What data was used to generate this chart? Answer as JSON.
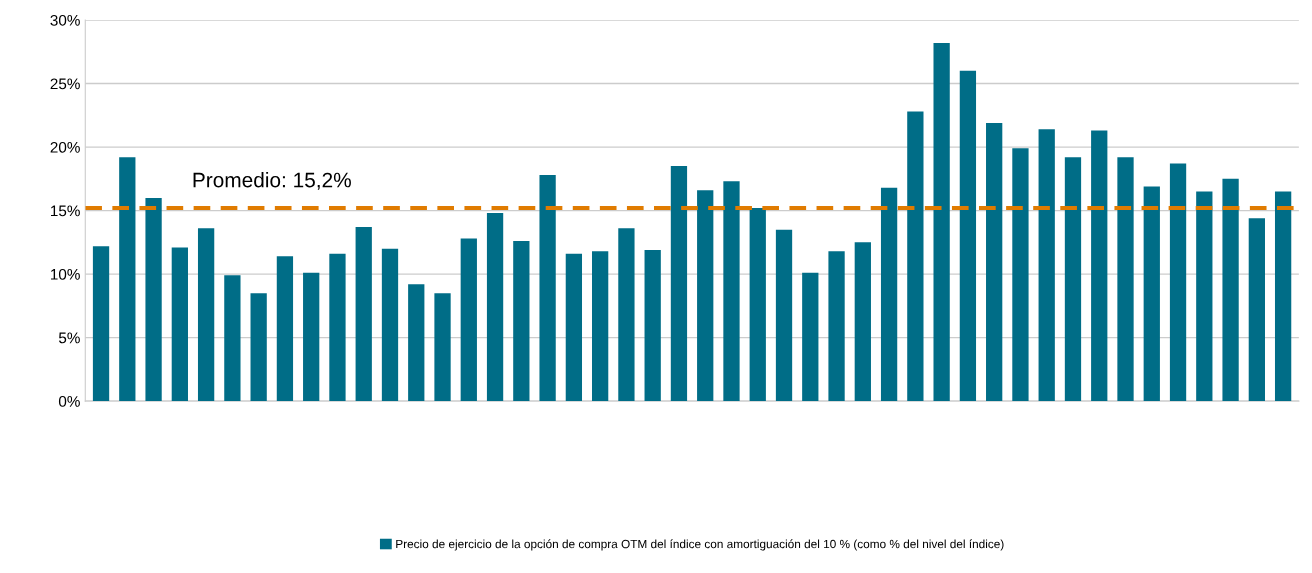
{
  "chart_data": {
    "type": "bar",
    "categories": [
      null,
      null,
      null,
      null,
      null,
      null,
      null,
      null,
      null,
      null,
      null,
      null,
      null,
      null,
      null,
      null,
      null,
      null,
      null,
      null,
      null,
      null,
      null,
      null,
      null,
      null,
      null,
      null,
      null,
      null,
      null,
      null,
      null,
      null,
      null,
      null,
      null,
      null,
      null,
      null,
      null,
      null,
      null,
      null,
      null,
      null
    ],
    "series": [
      {
        "name": "Precio de ejercicio de la opción de compra OTM del índice con amortiguación del 10 % (como % del nivel del índice)",
        "color": "#006d87",
        "values": [
          12.2,
          19.2,
          16.0,
          12.1,
          13.6,
          9.9,
          8.5,
          11.4,
          10.1,
          11.6,
          13.7,
          12.0,
          9.2,
          8.5,
          12.8,
          14.8,
          12.6,
          17.8,
          11.6,
          11.8,
          13.6,
          11.9,
          18.5,
          16.6,
          17.3,
          15.2,
          13.5,
          10.1,
          11.8,
          12.5,
          16.8,
          22.8,
          28.2,
          26.0,
          21.9,
          19.9,
          21.4,
          19.2,
          21.3,
          19.2,
          16.9,
          18.7,
          16.5,
          17.5,
          14.4,
          16.5
        ]
      }
    ],
    "ref_lines": [
      {
        "axis": "y",
        "value": 15.2,
        "label": "Promedio: 15,2%",
        "color": "#e07b00",
        "line_style": "dashed"
      }
    ],
    "ylim": [
      0,
      30
    ],
    "yticks": [
      {
        "value": 0,
        "label": "0%"
      },
      {
        "value": 5,
        "label": "5%"
      },
      {
        "value": 10,
        "label": "10%"
      },
      {
        "value": 15,
        "label": "15%"
      },
      {
        "value": 20,
        "label": "20%"
      },
      {
        "value": 25,
        "label": "25%"
      },
      {
        "value": 30,
        "label": "30%"
      }
    ],
    "grid": "y",
    "legend": "bottom"
  }
}
